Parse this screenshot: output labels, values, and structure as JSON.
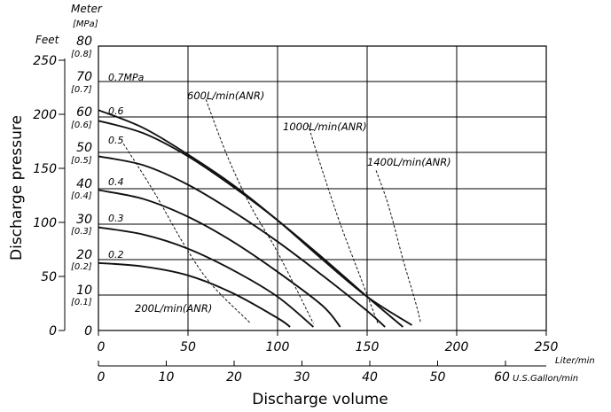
{
  "chart_data": {
    "type": "line",
    "x_primary": {
      "label": "Liter/min",
      "ticks": [
        "0",
        "50",
        "100",
        "150",
        "200",
        "250"
      ],
      "range": [
        0,
        250
      ]
    },
    "x_secondary": {
      "label": "U.S.Gallon/min",
      "ticks": [
        "0",
        "10",
        "20",
        "30",
        "40",
        "50",
        "60"
      ],
      "range": [
        0,
        66
      ]
    },
    "x_title": "Discharge volume",
    "y_meter": {
      "label": "Meter",
      "ticks": [
        "0",
        "10",
        "20",
        "30",
        "40",
        "50",
        "60",
        "70",
        "80"
      ],
      "range": [
        0,
        80
      ]
    },
    "y_mpa": {
      "label": "[MPa]",
      "ticks": [
        "[0.1]",
        "[0.2]",
        "[0.3]",
        "[0.4]",
        "[0.5]",
        "[0.6]",
        "[0.7]",
        "[0.8]"
      ]
    },
    "y_feet": {
      "label": "Feet",
      "ticks": [
        "0",
        "50",
        "100",
        "150",
        "200",
        "250"
      ],
      "range": [
        0,
        262.5
      ]
    },
    "y_title": "Discharge pressure",
    "series": [
      {
        "name": "0.7MPa",
        "points": [
          [
            0,
            62
          ],
          [
            25,
            57
          ],
          [
            50,
            49.5
          ],
          [
            75,
            41
          ],
          [
            100,
            31
          ],
          [
            125,
            20
          ],
          [
            150,
            9.5
          ],
          [
            175,
            1.5
          ]
        ]
      },
      {
        "name": "0.6",
        "points": [
          [
            0,
            59
          ],
          [
            25,
            55.5
          ],
          [
            50,
            49
          ],
          [
            75,
            40.5
          ],
          [
            100,
            31
          ],
          [
            125,
            20.5
          ],
          [
            150,
            9.5
          ],
          [
            170,
            1
          ]
        ]
      },
      {
        "name": "0.5",
        "points": [
          [
            0,
            49
          ],
          [
            25,
            46.5
          ],
          [
            50,
            41
          ],
          [
            75,
            33.5
          ],
          [
            100,
            25
          ],
          [
            125,
            15.5
          ],
          [
            150,
            5.5
          ],
          [
            160,
            1
          ]
        ]
      },
      {
        "name": "0.4",
        "points": [
          [
            0,
            39.5
          ],
          [
            25,
            37
          ],
          [
            50,
            32
          ],
          [
            75,
            25
          ],
          [
            100,
            16.5
          ],
          [
            125,
            7
          ],
          [
            135,
            1
          ]
        ]
      },
      {
        "name": "0.3",
        "points": [
          [
            0,
            29
          ],
          [
            25,
            27
          ],
          [
            50,
            23
          ],
          [
            75,
            17
          ],
          [
            100,
            9.5
          ],
          [
            120,
            1
          ]
        ]
      },
      {
        "name": "0.2",
        "points": [
          [
            0,
            19
          ],
          [
            25,
            18
          ],
          [
            50,
            15.5
          ],
          [
            75,
            10.5
          ],
          [
            100,
            3.5
          ],
          [
            107,
            1
          ]
        ]
      }
    ],
    "flow_lines": [
      {
        "name": "200L/min(ANR)",
        "points": [
          [
            14,
            52.5
          ],
          [
            31,
            39
          ],
          [
            48,
            24
          ],
          [
            63,
            13
          ],
          [
            85,
            2
          ]
        ]
      },
      {
        "name": "600L/min(ANR)",
        "points": [
          [
            60,
            65
          ],
          [
            72,
            49
          ],
          [
            85,
            35
          ],
          [
            100,
            22
          ],
          [
            120,
            2
          ]
        ]
      },
      {
        "name": "1000L/min(ANR)",
        "points": [
          [
            117,
            58
          ],
          [
            125,
            45
          ],
          [
            135,
            30
          ],
          [
            147,
            14
          ],
          [
            156,
            2
          ]
        ]
      },
      {
        "name": "1400L/min(ANR)",
        "points": [
          [
            155,
            45
          ],
          [
            162,
            35
          ],
          [
            170,
            20
          ],
          [
            177,
            8
          ],
          [
            180,
            2
          ]
        ]
      }
    ],
    "grid": true
  }
}
